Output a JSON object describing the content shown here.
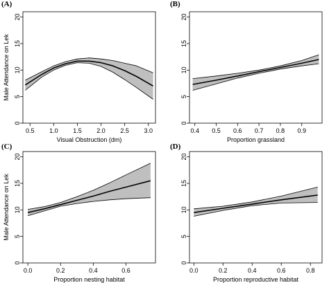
{
  "chart_data": [
    {
      "type": "line",
      "panel_label": "(A)",
      "xlabel": "Visual Obstruction (dm)",
      "ylabel": "Male Attendance on Lek",
      "xlim": [
        0.35,
        3.15
      ],
      "ylim": [
        0,
        21
      ],
      "x_ticks": [
        0.5,
        1.0,
        1.5,
        2.0,
        2.5,
        3.0
      ],
      "x_tick_labels": [
        "0.5",
        "1.0",
        "1.5",
        "2.0",
        "2.5",
        "3.0"
      ],
      "y_ticks": [
        0,
        5,
        10,
        15,
        20
      ],
      "y_tick_labels": [
        "0",
        "5",
        "10",
        "15",
        "20"
      ],
      "series": [
        {
          "role": "fitted",
          "x": [
            0.4,
            0.75,
            1.0,
            1.25,
            1.5,
            1.75,
            2.0,
            2.25,
            2.5,
            2.75,
            3.1
          ],
          "y": [
            7.2,
            9.2,
            10.4,
            11.2,
            11.7,
            11.7,
            11.4,
            10.8,
            9.9,
            8.8,
            7.0
          ]
        },
        {
          "role": "lower",
          "x": [
            0.4,
            0.75,
            1.0,
            1.25,
            1.5,
            1.75,
            2.0,
            2.25,
            2.5,
            2.75,
            3.1
          ],
          "y": [
            6.2,
            8.7,
            10.0,
            10.9,
            11.4,
            11.3,
            10.7,
            9.6,
            8.2,
            6.7,
            4.5
          ]
        },
        {
          "role": "upper",
          "x": [
            0.4,
            0.75,
            1.0,
            1.25,
            1.5,
            1.75,
            2.0,
            2.25,
            2.5,
            2.75,
            3.1
          ],
          "y": [
            8.1,
            9.7,
            10.8,
            11.6,
            12.1,
            12.3,
            12.1,
            11.8,
            11.3,
            10.8,
            9.5
          ]
        }
      ]
    },
    {
      "type": "line",
      "panel_label": "(B)",
      "xlabel": "Proportion grassland",
      "ylabel": "",
      "xlim": [
        0.375,
        0.995
      ],
      "ylim": [
        0,
        21
      ],
      "x_ticks": [
        0.4,
        0.5,
        0.6,
        0.7,
        0.8,
        0.9
      ],
      "x_tick_labels": [
        "0.4",
        "0.5",
        "0.6",
        "0.7",
        "0.8",
        "0.9"
      ],
      "y_ticks": [
        0,
        5,
        10,
        15,
        20
      ],
      "y_tick_labels": [
        "0",
        "5",
        "10",
        "15",
        "20"
      ],
      "series": [
        {
          "role": "fitted",
          "x": [
            0.39,
            0.5,
            0.6,
            0.7,
            0.8,
            0.9,
            0.98
          ],
          "y": [
            7.3,
            8.1,
            8.9,
            9.7,
            10.5,
            11.3,
            12.0
          ]
        },
        {
          "role": "lower",
          "x": [
            0.39,
            0.5,
            0.6,
            0.7,
            0.8,
            0.9,
            0.98
          ],
          "y": [
            6.2,
            7.4,
            8.5,
            9.4,
            10.2,
            10.8,
            11.2
          ]
        },
        {
          "role": "upper",
          "x": [
            0.39,
            0.5,
            0.6,
            0.7,
            0.8,
            0.9,
            0.98
          ],
          "y": [
            8.4,
            8.9,
            9.4,
            10.0,
            10.8,
            11.8,
            12.9
          ]
        }
      ]
    },
    {
      "type": "line",
      "panel_label": "(C)",
      "xlabel": "Proportion nesting habitat",
      "ylabel": "Male Attendance on Lek",
      "xlim": [
        -0.03,
        0.78
      ],
      "ylim": [
        0,
        21
      ],
      "x_ticks": [
        0.0,
        0.2,
        0.4,
        0.6
      ],
      "x_tick_labels": [
        "0.0",
        "0.2",
        "0.4",
        "0.6"
      ],
      "y_ticks": [
        0,
        5,
        10,
        15,
        20
      ],
      "y_tick_labels": [
        "0",
        "5",
        "10",
        "15",
        "20"
      ],
      "series": [
        {
          "role": "fitted",
          "x": [
            0.0,
            0.1,
            0.2,
            0.3,
            0.4,
            0.5,
            0.6,
            0.75
          ],
          "y": [
            9.5,
            10.2,
            11.0,
            11.8,
            12.6,
            13.5,
            14.3,
            15.5
          ]
        },
        {
          "role": "lower",
          "x": [
            0.0,
            0.1,
            0.2,
            0.3,
            0.4,
            0.5,
            0.6,
            0.75
          ],
          "y": [
            8.9,
            9.8,
            10.7,
            11.2,
            11.6,
            11.9,
            12.1,
            12.3
          ]
        },
        {
          "role": "upper",
          "x": [
            0.0,
            0.1,
            0.2,
            0.3,
            0.4,
            0.5,
            0.6,
            0.75
          ],
          "y": [
            10.1,
            10.6,
            11.4,
            12.5,
            13.7,
            15.1,
            16.6,
            18.8
          ]
        }
      ]
    },
    {
      "type": "line",
      "panel_label": "(D)",
      "xlabel": "Proportion reproductive habitat",
      "ylabel": "",
      "xlim": [
        -0.03,
        0.88
      ],
      "ylim": [
        0,
        21
      ],
      "x_ticks": [
        0.0,
        0.2,
        0.4,
        0.6,
        0.8
      ],
      "x_tick_labels": [
        "0.0",
        "0.2",
        "0.4",
        "0.6",
        "0.8"
      ],
      "y_ticks": [
        0,
        5,
        10,
        15,
        20
      ],
      "y_tick_labels": [
        "0",
        "5",
        "10",
        "15",
        "20"
      ],
      "series": [
        {
          "role": "fitted",
          "x": [
            0.0,
            0.2,
            0.4,
            0.6,
            0.85
          ],
          "y": [
            9.5,
            10.3,
            11.1,
            11.9,
            12.8
          ]
        },
        {
          "role": "lower",
          "x": [
            0.0,
            0.2,
            0.4,
            0.6,
            0.85
          ],
          "y": [
            8.8,
            9.9,
            10.8,
            11.3,
            11.4
          ]
        },
        {
          "role": "upper",
          "x": [
            0.0,
            0.2,
            0.4,
            0.6,
            0.85
          ],
          "y": [
            10.2,
            10.7,
            11.5,
            12.6,
            14.3
          ]
        }
      ]
    }
  ],
  "colors": {
    "band": "#bfbfbf",
    "line": "#000000",
    "frame": "#000000"
  }
}
